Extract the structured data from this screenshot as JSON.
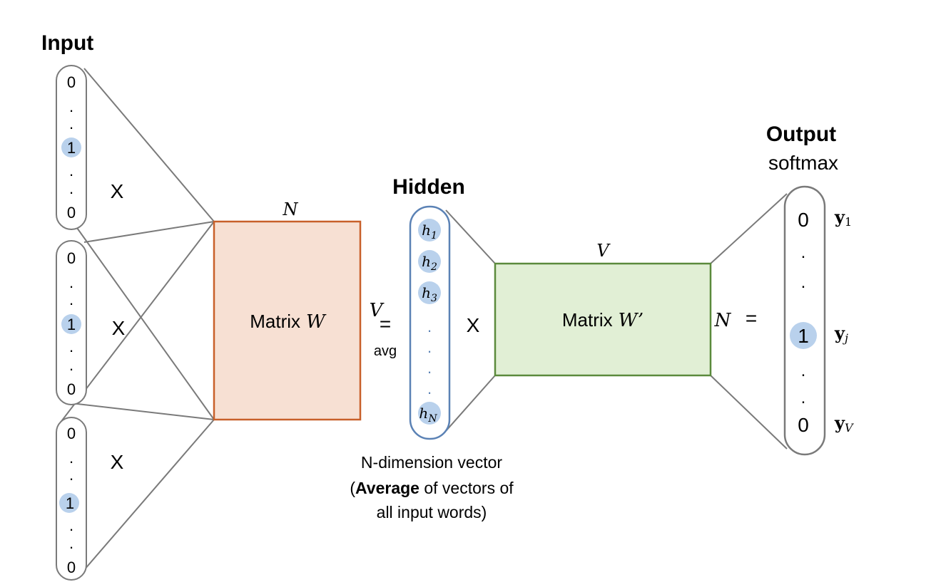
{
  "input": {
    "title": "Input",
    "vectors": [
      {
        "cells": [
          "0",
          ".",
          ".",
          "1",
          ".",
          ".",
          "0"
        ],
        "times": "X"
      },
      {
        "cells": [
          "0",
          ".",
          ".",
          "1",
          ".",
          ".",
          "0"
        ],
        "times": "X"
      },
      {
        "cells": [
          "0",
          ".",
          ".",
          "1",
          ".",
          ".",
          "0"
        ],
        "times": "X"
      }
    ]
  },
  "matrix_w": {
    "label": "Matrix",
    "symbol": "W",
    "top_label": "N",
    "side_label": "V",
    "fill": "#f7e0d3",
    "stroke": "#c8602a"
  },
  "average": {
    "equals": "=",
    "label": "avg"
  },
  "hidden": {
    "title": "Hidden",
    "cells": [
      {
        "base": "h",
        "sub": "1"
      },
      {
        "base": "h",
        "sub": "2"
      },
      {
        "base": "h",
        "sub": "3"
      },
      {
        "base": ".",
        "sub": ""
      },
      {
        "base": ".",
        "sub": ""
      },
      {
        "base": ".",
        "sub": ""
      },
      {
        "base": ".",
        "sub": ""
      },
      {
        "base": "h",
        "sub": "N"
      }
    ],
    "times": "X",
    "caption_line1": "N-dimension vector",
    "caption_open": "(",
    "caption_bold": "Average",
    "caption_rest": " of vectors of",
    "caption_line3": "all input words)",
    "stroke": "#5b82b5"
  },
  "matrix_w2": {
    "label": "Matrix",
    "symbol": "W’",
    "top_label": "V",
    "side_label": "N",
    "fill": "#e1efd5",
    "stroke": "#5b8a3c"
  },
  "output": {
    "title": "Output",
    "subtitle": "softmax",
    "equals": "=",
    "cells": [
      "0",
      ".",
      ".",
      "1",
      ".",
      ".",
      "0"
    ],
    "labels": [
      {
        "base": "y",
        "sub": "1"
      },
      {
        "base": "y",
        "sub": "j"
      },
      {
        "base": "y",
        "sub": "V"
      }
    ]
  },
  "colors": {
    "line": "#7a7a7a",
    "highlight": "#b9d1ec"
  }
}
